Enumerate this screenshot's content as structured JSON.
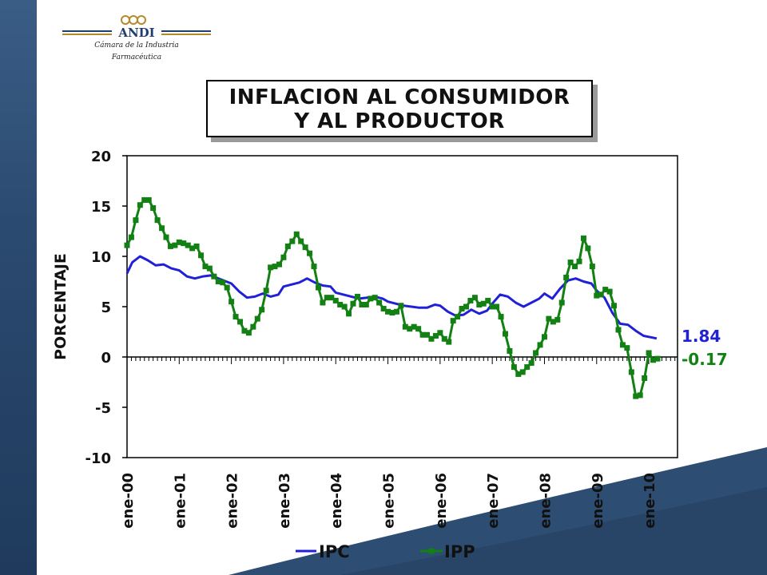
{
  "logo": {
    "brand": "ANDI",
    "subtitle_line1": "Cámara de la Industria",
    "subtitle_line2": "Farmacéutica"
  },
  "title": {
    "line1": "INFLACION AL CONSUMIDOR",
    "line2": "Y AL PRODUCTOR"
  },
  "colors": {
    "ipc": "#2020d8",
    "ipp": "#128012",
    "background_dark": "#2e4d72"
  },
  "chart_data": {
    "type": "line",
    "ylabel": "PORCENTAJE",
    "xlabel": "",
    "ylim": [
      -10,
      20
    ],
    "yticks": [
      20,
      15,
      10,
      5,
      0,
      -5,
      -10
    ],
    "xlim": [
      2000,
      2010.55
    ],
    "xtick_labels": [
      "ene-00",
      "ene-01",
      "ene-02",
      "ene-03",
      "ene-04",
      "ene-05",
      "ene-06",
      "ene-07",
      "ene-08",
      "ene-09",
      "ene-10"
    ],
    "legend_position": "bottom",
    "end_labels": [
      "1.84",
      "-0.17"
    ],
    "series": [
      {
        "name": "IPC",
        "marker": "none",
        "x": [
          2000.0,
          2000.1,
          2000.25,
          2000.4,
          2000.55,
          2000.7,
          2000.85,
          2001.0,
          2001.15,
          2001.3,
          2001.45,
          2001.6,
          2001.75,
          2001.9,
          2002.0,
          2002.15,
          2002.3,
          2002.45,
          2002.6,
          2002.75,
          2002.9,
          2003.0,
          2003.15,
          2003.3,
          2003.45,
          2003.6,
          2003.75,
          2003.9,
          2004.0,
          2004.15,
          2004.3,
          2004.45,
          2004.6,
          2004.75,
          2004.9,
          2005.0,
          2005.15,
          2005.3,
          2005.45,
          2005.6,
          2005.75,
          2005.9,
          2006.0,
          2006.15,
          2006.3,
          2006.45,
          2006.6,
          2006.75,
          2006.9,
          2007.0,
          2007.15,
          2007.3,
          2007.45,
          2007.6,
          2007.75,
          2007.9,
          2008.0,
          2008.15,
          2008.3,
          2008.45,
          2008.6,
          2008.75,
          2008.9,
          2009.0,
          2009.15,
          2009.3,
          2009.45,
          2009.6,
          2009.75,
          2009.9,
          2010.0,
          2010.15
        ],
        "values": [
          8.3,
          9.4,
          10.0,
          9.6,
          9.1,
          9.2,
          8.8,
          8.6,
          8.0,
          7.8,
          8.0,
          8.1,
          7.8,
          7.5,
          7.3,
          6.5,
          5.9,
          6.0,
          6.3,
          6.0,
          6.2,
          7.0,
          7.2,
          7.4,
          7.8,
          7.4,
          7.1,
          7.0,
          6.4,
          6.2,
          6.0,
          5.8,
          5.9,
          6.0,
          5.8,
          5.5,
          5.3,
          5.1,
          5.0,
          4.9,
          4.9,
          5.2,
          5.1,
          4.5,
          4.1,
          4.2,
          4.7,
          4.3,
          4.6,
          5.3,
          6.2,
          6.0,
          5.4,
          5.0,
          5.4,
          5.8,
          6.3,
          5.8,
          6.8,
          7.6,
          7.8,
          7.5,
          7.3,
          6.6,
          5.9,
          4.4,
          3.3,
          3.2,
          2.6,
          2.1,
          2.0,
          1.84
        ]
      },
      {
        "name": "IPP",
        "marker": "square",
        "x": [
          2000.0,
          2000.083,
          2000.167,
          2000.25,
          2000.333,
          2000.417,
          2000.5,
          2000.583,
          2000.667,
          2000.75,
          2000.833,
          2000.917,
          2001.0,
          2001.083,
          2001.167,
          2001.25,
          2001.333,
          2001.417,
          2001.5,
          2001.583,
          2001.667,
          2001.75,
          2001.833,
          2001.917,
          2002.0,
          2002.083,
          2002.167,
          2002.25,
          2002.333,
          2002.417,
          2002.5,
          2002.583,
          2002.667,
          2002.75,
          2002.833,
          2002.917,
          2003.0,
          2003.083,
          2003.167,
          2003.25,
          2003.333,
          2003.417,
          2003.5,
          2003.583,
          2003.667,
          2003.75,
          2003.833,
          2003.917,
          2004.0,
          2004.083,
          2004.167,
          2004.25,
          2004.333,
          2004.417,
          2004.5,
          2004.583,
          2004.667,
          2004.75,
          2004.833,
          2004.917,
          2005.0,
          2005.083,
          2005.167,
          2005.25,
          2005.333,
          2005.417,
          2005.5,
          2005.583,
          2005.667,
          2005.75,
          2005.833,
          2005.917,
          2006.0,
          2006.083,
          2006.167,
          2006.25,
          2006.333,
          2006.417,
          2006.5,
          2006.583,
          2006.667,
          2006.75,
          2006.833,
          2006.917,
          2007.0,
          2007.083,
          2007.167,
          2007.25,
          2007.333,
          2007.417,
          2007.5,
          2007.583,
          2007.667,
          2007.75,
          2007.833,
          2007.917,
          2008.0,
          2008.083,
          2008.167,
          2008.25,
          2008.333,
          2008.417,
          2008.5,
          2008.583,
          2008.667,
          2008.75,
          2008.833,
          2008.917,
          2009.0,
          2009.083,
          2009.167,
          2009.25,
          2009.333,
          2009.417,
          2009.5,
          2009.583,
          2009.667,
          2009.75,
          2009.833,
          2009.917,
          2010.0,
          2010.083,
          2010.167
        ],
        "values": [
          11.1,
          11.9,
          13.6,
          15.1,
          15.6,
          15.6,
          14.8,
          13.6,
          12.8,
          11.9,
          11.0,
          11.1,
          11.4,
          11.3,
          11.1,
          10.8,
          11.0,
          10.1,
          9.0,
          8.8,
          8.0,
          7.5,
          7.4,
          6.9,
          5.5,
          4.0,
          3.5,
          2.6,
          2.4,
          3.0,
          3.8,
          4.7,
          6.6,
          8.9,
          9.0,
          9.2,
          9.9,
          11.0,
          11.5,
          12.2,
          11.5,
          10.9,
          10.3,
          9.0,
          6.9,
          5.4,
          5.9,
          5.9,
          5.6,
          5.2,
          5.0,
          4.3,
          5.3,
          6.0,
          5.2,
          5.2,
          5.8,
          5.9,
          5.4,
          4.8,
          4.5,
          4.4,
          4.5,
          5.1,
          3.0,
          2.8,
          3.0,
          2.8,
          2.2,
          2.2,
          1.8,
          2.1,
          2.4,
          1.8,
          1.5,
          3.6,
          4.0,
          4.8,
          5.0,
          5.6,
          5.9,
          5.2,
          5.3,
          5.6,
          5.0,
          5.0,
          4.0,
          2.3,
          0.6,
          -1.0,
          -1.7,
          -1.5,
          -1.0,
          -0.6,
          0.4,
          1.2,
          2.0,
          3.8,
          3.5,
          3.7,
          5.4,
          7.9,
          9.4,
          9.0,
          9.5,
          11.8,
          10.8,
          9.0,
          6.1,
          6.2,
          6.7,
          6.5,
          5.1,
          2.7,
          1.2,
          0.9,
          -1.5,
          -3.9,
          -3.8,
          -2.1,
          0.4,
          -0.3,
          -0.17
        ]
      }
    ]
  }
}
